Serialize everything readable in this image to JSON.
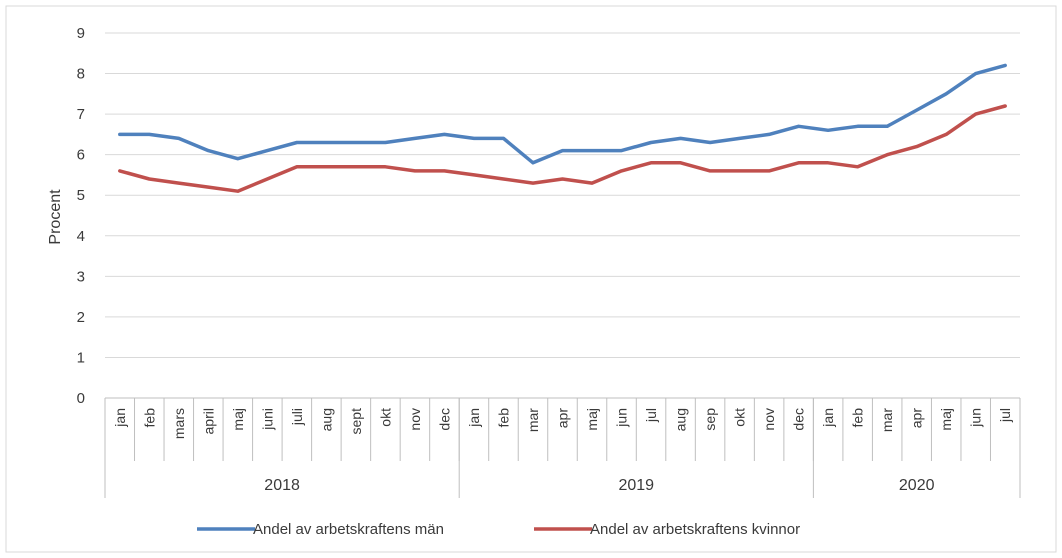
{
  "chart_data": {
    "type": "line",
    "title": "",
    "ylabel": "Procent",
    "xlabel": "",
    "ylim": [
      0,
      9
    ],
    "yticks": [
      0,
      1,
      2,
      3,
      4,
      5,
      6,
      7,
      8,
      9
    ],
    "grid": "horizontal",
    "legend_position": "bottom",
    "groups": [
      {
        "label": "2018",
        "months": [
          "jan",
          "feb",
          "mars",
          "april",
          "maj",
          "juni",
          "juli",
          "aug",
          "sept",
          "okt",
          "nov",
          "dec"
        ]
      },
      {
        "label": "2019",
        "months": [
          "jan",
          "feb",
          "mar",
          "apr",
          "maj",
          "jun",
          "jul",
          "aug",
          "sep",
          "okt",
          "nov",
          "dec"
        ]
      },
      {
        "label": "2020",
        "months": [
          "jan",
          "feb",
          "mar",
          "apr",
          "maj",
          "jun",
          "jul"
        ]
      }
    ],
    "series": [
      {
        "name": "Andel av arbetskraftens män",
        "color": "#4f81bd",
        "values": [
          6.5,
          6.5,
          6.4,
          6.1,
          5.9,
          6.1,
          6.3,
          6.3,
          6.3,
          6.3,
          6.4,
          6.5,
          6.4,
          6.4,
          5.8,
          6.1,
          6.1,
          6.1,
          6.3,
          6.4,
          6.3,
          6.4,
          6.5,
          6.7,
          6.6,
          6.7,
          6.7,
          7.1,
          7.5,
          8.0,
          8.2
        ]
      },
      {
        "name": "Andel av arbetskraftens kvinnor",
        "color": "#c0504d",
        "values": [
          5.6,
          5.4,
          5.3,
          5.2,
          5.1,
          5.4,
          5.7,
          5.7,
          5.7,
          5.7,
          5.6,
          5.6,
          5.5,
          5.4,
          5.3,
          5.4,
          5.3,
          5.6,
          5.8,
          5.8,
          5.6,
          5.6,
          5.6,
          5.8,
          5.8,
          5.7,
          6.0,
          6.2,
          6.5,
          7.0,
          7.2
        ]
      }
    ]
  },
  "colors": {
    "grid": "#d9d9d9",
    "axis": "#bfbfbf",
    "frame": "#d9d9d9"
  }
}
